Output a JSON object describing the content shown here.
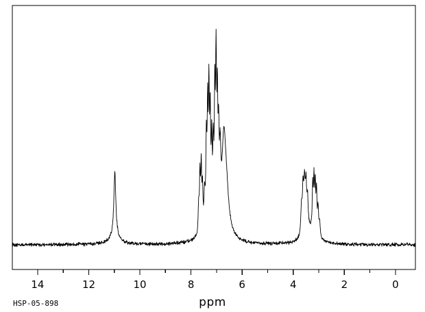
{
  "window": {
    "background": "#ffffff",
    "foreground": "#000000"
  },
  "labels": {
    "x_axis_title": "ppm",
    "sample_id": "HSP-05-898"
  },
  "chart_data": {
    "type": "line",
    "description": "1H NMR spectrum trace, single black line on white, boxed plot area, x axis in ppm decreasing left to right",
    "xlabel": "ppm",
    "sample_id": "HSP-05-898",
    "line_color": "#000000",
    "background": "#ffffff",
    "x_axis": {
      "left_ppm": 14.99,
      "right_ppm": -0.78,
      "major_ticks": [
        14,
        12,
        10,
        8,
        6,
        4,
        2,
        0
      ],
      "minor_ticks": [
        13,
        11,
        9,
        7,
        5,
        3,
        1
      ]
    },
    "y_axis": {
      "visible_scale": false,
      "relative_max": 1.0
    },
    "baseline_relative": 0.0,
    "noise_amplitude_relative": 0.01,
    "peaks": [
      {
        "ppm": 10.98,
        "rel_height": 0.31,
        "hwhm_ppm": 0.045
      },
      {
        "ppm": 10.98,
        "rel_height": 0.05,
        "hwhm_ppm": 0.2
      },
      {
        "ppm": 7.7,
        "rel_height": 0.14,
        "hwhm_ppm": 0.022
      },
      {
        "ppm": 7.65,
        "rel_height": 0.27,
        "hwhm_ppm": 0.022
      },
      {
        "ppm": 7.6,
        "rel_height": 0.31,
        "hwhm_ppm": 0.022
      },
      {
        "ppm": 7.55,
        "rel_height": 0.19,
        "hwhm_ppm": 0.022
      },
      {
        "ppm": 7.47,
        "rel_height": 0.16,
        "hwhm_ppm": 0.025
      },
      {
        "ppm": 7.4,
        "rel_height": 0.39,
        "hwhm_ppm": 0.022
      },
      {
        "ppm": 7.35,
        "rel_height": 0.51,
        "hwhm_ppm": 0.022
      },
      {
        "ppm": 7.3,
        "rel_height": 0.6,
        "hwhm_ppm": 0.022
      },
      {
        "ppm": 7.25,
        "rel_height": 0.46,
        "hwhm_ppm": 0.022
      },
      {
        "ppm": 7.19,
        "rel_height": 0.35,
        "hwhm_ppm": 0.022
      },
      {
        "ppm": 7.13,
        "rel_height": 0.31,
        "hwhm_ppm": 0.022
      },
      {
        "ppm": 7.07,
        "rel_height": 0.56,
        "hwhm_ppm": 0.022
      },
      {
        "ppm": 7.02,
        "rel_height": 0.72,
        "hwhm_ppm": 0.022
      },
      {
        "ppm": 6.97,
        "rel_height": 0.5,
        "hwhm_ppm": 0.022
      },
      {
        "ppm": 6.92,
        "rel_height": 0.35,
        "hwhm_ppm": 0.025
      },
      {
        "ppm": 6.86,
        "rel_height": 0.27,
        "hwhm_ppm": 0.03
      },
      {
        "ppm": 6.72,
        "rel_height": 0.37,
        "hwhm_ppm": 0.09
      },
      {
        "ppm": 6.63,
        "rel_height": 0.22,
        "hwhm_ppm": 0.13
      },
      {
        "ppm": 7.15,
        "rel_height": 0.08,
        "hwhm_ppm": 0.35
      },
      {
        "ppm": 3.68,
        "rel_height": 0.13,
        "hwhm_ppm": 0.03
      },
      {
        "ppm": 3.62,
        "rel_height": 0.2,
        "hwhm_ppm": 0.03
      },
      {
        "ppm": 3.56,
        "rel_height": 0.24,
        "hwhm_ppm": 0.035
      },
      {
        "ppm": 3.5,
        "rel_height": 0.2,
        "hwhm_ppm": 0.03
      },
      {
        "ppm": 3.44,
        "rel_height": 0.14,
        "hwhm_ppm": 0.03
      },
      {
        "ppm": 3.24,
        "rel_height": 0.21,
        "hwhm_ppm": 0.022
      },
      {
        "ppm": 3.19,
        "rel_height": 0.24,
        "hwhm_ppm": 0.022
      },
      {
        "ppm": 3.14,
        "rel_height": 0.22,
        "hwhm_ppm": 0.022
      },
      {
        "ppm": 3.09,
        "rel_height": 0.19,
        "hwhm_ppm": 0.022
      },
      {
        "ppm": 3.03,
        "rel_height": 0.13,
        "hwhm_ppm": 0.025
      },
      {
        "ppm": 2.97,
        "rel_height": 0.07,
        "hwhm_ppm": 0.03
      },
      {
        "ppm": 3.35,
        "rel_height": 0.06,
        "hwhm_ppm": 0.28
      }
    ],
    "peak_cluster_summary": [
      {
        "region_ppm": "11.0",
        "rel_height": 0.36,
        "shape": "sharp singlet with broad base"
      },
      {
        "region_ppm": "7.7 - 6.3",
        "rel_height": 1.0,
        "shape": "dense aromatic multiplet cluster"
      },
      {
        "region_ppm": "3.7 - 2.95",
        "rel_height": 0.38,
        "shape": "two overlapping aliphatic multiplets"
      }
    ]
  }
}
